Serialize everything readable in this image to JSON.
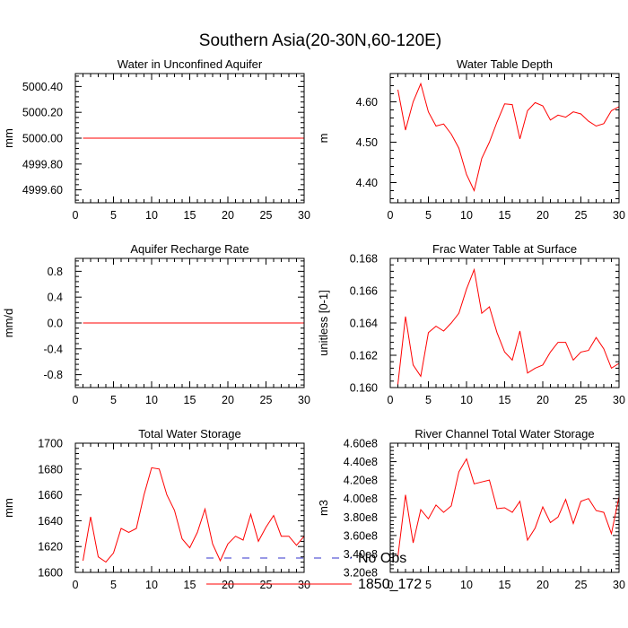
{
  "figure": {
    "title": "Southern Asia(20-30N,60-120E)",
    "legend": {
      "entries": [
        {
          "label": "No Obs",
          "color": "#3333cc",
          "style": "dashed"
        },
        {
          "label": "1850_172",
          "color": "#ff0000",
          "style": "solid"
        }
      ]
    }
  },
  "chart_data": [
    {
      "type": "line",
      "title": "Water in Unconfined Aquifer",
      "ylabel": "mm",
      "xlim": [
        0,
        30
      ],
      "ylim": [
        4999.5,
        5000.5
      ],
      "xticks": [
        0,
        5,
        10,
        15,
        20,
        25,
        30
      ],
      "yticks": [
        4999.6,
        4999.8,
        5000.0,
        5000.2,
        5000.4
      ],
      "ytick_labels": [
        "4999.60",
        "4999.80",
        "5000.00",
        "5000.20",
        "5000.40"
      ],
      "series": [
        {
          "name": "1850_172",
          "color": "#ff0000",
          "x": [
            1,
            2,
            3,
            4,
            5,
            6,
            7,
            8,
            9,
            10,
            11,
            12,
            13,
            14,
            15,
            16,
            17,
            18,
            19,
            20,
            21,
            22,
            23,
            24,
            25,
            26,
            27,
            28,
            29,
            30
          ],
          "values": [
            5000,
            5000,
            5000,
            5000,
            5000,
            5000,
            5000,
            5000,
            5000,
            5000,
            5000,
            5000,
            5000,
            5000,
            5000,
            5000,
            5000,
            5000,
            5000,
            5000,
            5000,
            5000,
            5000,
            5000,
            5000,
            5000,
            5000,
            5000,
            5000,
            5000
          ]
        }
      ]
    },
    {
      "type": "line",
      "title": "Water Table Depth",
      "ylabel": "m",
      "xlim": [
        0,
        30
      ],
      "ylim": [
        4.35,
        4.67
      ],
      "xticks": [
        0,
        5,
        10,
        15,
        20,
        25,
        30
      ],
      "yticks": [
        4.4,
        4.5,
        4.6
      ],
      "ytick_labels": [
        "4.40",
        "4.50",
        "4.60"
      ],
      "series": [
        {
          "name": "1850_172",
          "color": "#ff0000",
          "x": [
            1,
            2,
            3,
            4,
            5,
            6,
            7,
            8,
            9,
            10,
            11,
            12,
            13,
            14,
            15,
            16,
            17,
            18,
            19,
            20,
            21,
            22,
            23,
            24,
            25,
            26,
            27,
            28,
            29,
            30
          ],
          "values": [
            4.63,
            4.53,
            4.6,
            4.645,
            4.575,
            4.54,
            4.545,
            4.52,
            4.485,
            4.42,
            4.38,
            4.46,
            4.5,
            4.55,
            4.595,
            4.593,
            4.508,
            4.578,
            4.598,
            4.59,
            4.555,
            4.567,
            4.562,
            4.575,
            4.57,
            4.552,
            4.54,
            4.546,
            4.578,
            4.588
          ]
        }
      ]
    },
    {
      "type": "line",
      "title": "Aquifer Recharge Rate",
      "ylabel": "mm/d",
      "xlim": [
        0,
        30
      ],
      "ylim": [
        -1.0,
        1.0
      ],
      "xticks": [
        0,
        5,
        10,
        15,
        20,
        25,
        30
      ],
      "yticks": [
        -0.8,
        -0.4,
        0.0,
        0.4,
        0.8
      ],
      "ytick_labels": [
        "-0.8",
        "-0.4",
        "0.0",
        "0.4",
        "0.8"
      ],
      "series": [
        {
          "name": "1850_172",
          "color": "#ff0000",
          "x": [
            1,
            2,
            3,
            4,
            5,
            6,
            7,
            8,
            9,
            10,
            11,
            12,
            13,
            14,
            15,
            16,
            17,
            18,
            19,
            20,
            21,
            22,
            23,
            24,
            25,
            26,
            27,
            28,
            29,
            30
          ],
          "values": [
            0,
            0,
            0,
            0,
            0,
            0,
            0,
            0,
            0,
            0,
            0,
            0,
            0,
            0,
            0,
            0,
            0,
            0,
            0,
            0,
            0,
            0,
            0,
            0,
            0,
            0,
            0,
            0,
            0,
            0
          ]
        }
      ]
    },
    {
      "type": "line",
      "title": "Frac Water Table at Surface",
      "ylabel": "unitless [0-1]",
      "xlim": [
        0,
        30
      ],
      "ylim": [
        0.16,
        0.168
      ],
      "xticks": [
        0,
        5,
        10,
        15,
        20,
        25,
        30
      ],
      "yticks": [
        0.16,
        0.162,
        0.164,
        0.166,
        0.168
      ],
      "ytick_labels": [
        "0.160",
        "0.162",
        "0.164",
        "0.166",
        "0.168"
      ],
      "series": [
        {
          "name": "1850_172",
          "color": "#ff0000",
          "x": [
            1,
            2,
            3,
            4,
            5,
            6,
            7,
            8,
            9,
            10,
            11,
            12,
            13,
            14,
            15,
            16,
            17,
            18,
            19,
            20,
            21,
            22,
            23,
            24,
            25,
            26,
            27,
            28,
            29,
            30
          ],
          "values": [
            0.1602,
            0.1644,
            0.1614,
            0.1607,
            0.1634,
            0.1638,
            0.1635,
            0.164,
            0.1646,
            0.1661,
            0.1673,
            0.1646,
            0.165,
            0.1634,
            0.1622,
            0.1617,
            0.1635,
            0.1609,
            0.1612,
            0.1614,
            0.1622,
            0.1628,
            0.1628,
            0.1617,
            0.1622,
            0.1623,
            0.1631,
            0.1624,
            0.1612,
            0.1615
          ]
        }
      ]
    },
    {
      "type": "line",
      "title": "Total Water Storage",
      "ylabel": "mm",
      "xlim": [
        0,
        30
      ],
      "ylim": [
        1600,
        1700
      ],
      "xticks": [
        0,
        5,
        10,
        15,
        20,
        25,
        30
      ],
      "yticks": [
        1600,
        1620,
        1640,
        1660,
        1680,
        1700
      ],
      "ytick_labels": [
        "1600",
        "1620",
        "1640",
        "1660",
        "1680",
        "1700"
      ],
      "series": [
        {
          "name": "1850_172",
          "color": "#ff0000",
          "x": [
            1,
            2,
            3,
            4,
            5,
            6,
            7,
            8,
            9,
            10,
            11,
            12,
            13,
            14,
            15,
            16,
            17,
            18,
            19,
            20,
            21,
            22,
            23,
            24,
            25,
            26,
            27,
            28,
            29,
            30
          ],
          "values": [
            1609,
            1643,
            1612,
            1608,
            1615,
            1634,
            1631,
            1634,
            1660,
            1681,
            1680,
            1660,
            1648,
            1626,
            1619,
            1631,
            1649,
            1622,
            1609,
            1622,
            1628,
            1625,
            1645,
            1624,
            1635,
            1644,
            1628,
            1628,
            1621,
            1628
          ]
        }
      ]
    },
    {
      "type": "line",
      "title": "River Channel Total Water Storage",
      "ylabel": "m3",
      "xlim": [
        0,
        30
      ],
      "ylim": [
        320000000,
        460000000
      ],
      "xticks": [
        0,
        5,
        10,
        15,
        20,
        25,
        30
      ],
      "yticks": [
        320000000,
        340000000,
        360000000,
        380000000,
        400000000,
        420000000,
        440000000,
        460000000
      ],
      "ytick_labels": [
        "3.20e8",
        "3.40e8",
        "3.60e8",
        "3.80e8",
        "4.00e8",
        "4.20e8",
        "4.40e8",
        "4.60e8"
      ],
      "series": [
        {
          "name": "1850_172",
          "color": "#ff0000",
          "x": [
            1,
            2,
            3,
            4,
            5,
            6,
            7,
            8,
            9,
            10,
            11,
            12,
            13,
            14,
            15,
            16,
            17,
            18,
            19,
            20,
            21,
            22,
            23,
            24,
            25,
            26,
            27,
            28,
            29,
            30
          ],
          "values": [
            337000000,
            404000000,
            352000000,
            388000000,
            378000000,
            393000000,
            385000000,
            392000000,
            429000000,
            443000000,
            416000000,
            418000000,
            420000000,
            389000000,
            390000000,
            385000000,
            397000000,
            355000000,
            368000000,
            391000000,
            374000000,
            380000000,
            399000000,
            373000000,
            397000000,
            400000000,
            387000000,
            385000000,
            362000000,
            402000000
          ]
        }
      ]
    }
  ]
}
